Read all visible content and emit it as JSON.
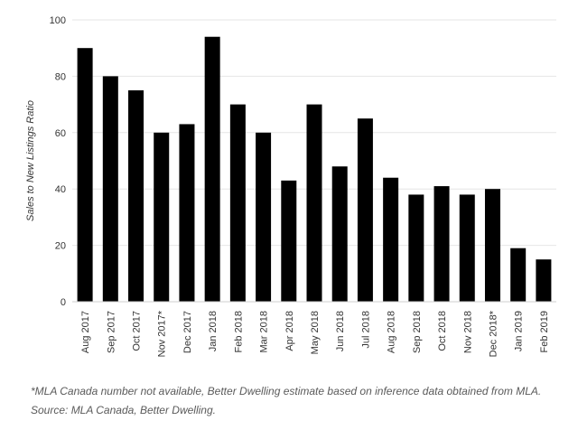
{
  "chart_data": {
    "type": "bar",
    "ylabel": "Sales to New Listings Ratio",
    "xlabel": "",
    "ylim": [
      0,
      100
    ],
    "yticks": [
      0,
      20,
      40,
      60,
      80,
      100
    ],
    "grid": true,
    "categories": [
      "Aug 2017",
      "Sep 2017",
      "Oct 2017",
      "Nov 2017*",
      "Dec 2017",
      "Jan 2018",
      "Feb 2018",
      "Mar 2018",
      "Apr 2018",
      "May 2018",
      "Jun 2018",
      "Jul 2018",
      "Aug 2018",
      "Sep 2018",
      "Oct 2018",
      "Nov 2018",
      "Dec 2018*",
      "Jan 2019",
      "Feb 2019"
    ],
    "values": [
      90,
      80,
      75,
      60,
      63,
      94,
      70,
      60,
      43,
      70,
      48,
      65,
      44,
      38,
      41,
      38,
      40,
      19,
      15
    ],
    "bar_color": "#000000",
    "grid_color": "#e6e6e6"
  },
  "footnotes": {
    "note": "*MLA Canada number not available, Better Dwelling estimate based on inference data obtained from MLA.",
    "source": "Source: MLA Canada, Better Dwelling."
  }
}
